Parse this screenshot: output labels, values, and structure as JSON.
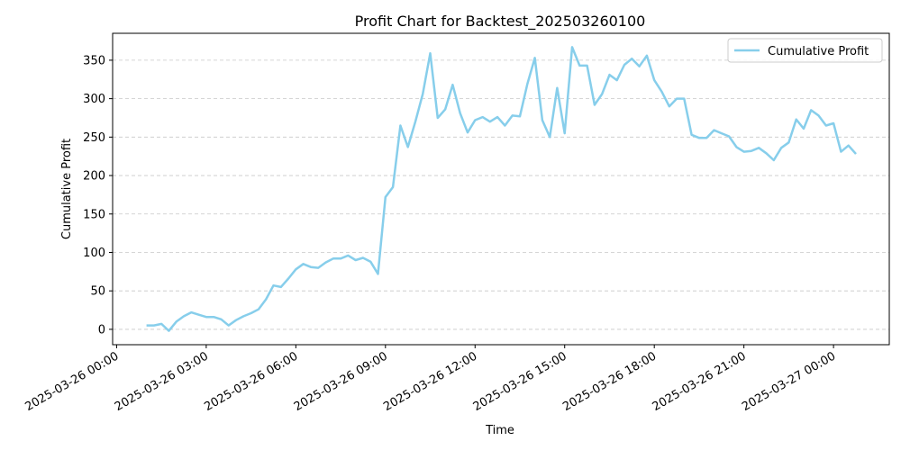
{
  "chart_data": {
    "type": "line",
    "title": "Profit Chart for Backtest_202503260100",
    "xlabel": "Time",
    "ylabel": "Cumulative Profit",
    "xlim": [
      "2025-03-25 23:52",
      "2025-03-27 01:52"
    ],
    "ylim": [
      -20,
      385
    ],
    "x_ticks": [
      "2025-03-26 00:00",
      "2025-03-26 03:00",
      "2025-03-26 06:00",
      "2025-03-26 09:00",
      "2025-03-26 12:00",
      "2025-03-26 15:00",
      "2025-03-26 18:00",
      "2025-03-26 21:00",
      "2025-03-27 00:00"
    ],
    "y_ticks": [
      0,
      50,
      100,
      150,
      200,
      250,
      300,
      350
    ],
    "grid": "horizontal dashed",
    "legend_position": "top-right",
    "series": [
      {
        "name": "Cumulative Profit",
        "color": "#87ceeb",
        "x": [
          "2025-03-26 01:00",
          "2025-03-26 01:15",
          "2025-03-26 01:30",
          "2025-03-26 01:45",
          "2025-03-26 02:00",
          "2025-03-26 02:15",
          "2025-03-26 02:30",
          "2025-03-26 02:45",
          "2025-03-26 03:00",
          "2025-03-26 03:15",
          "2025-03-26 03:30",
          "2025-03-26 03:45",
          "2025-03-26 04:00",
          "2025-03-26 04:15",
          "2025-03-26 04:30",
          "2025-03-26 04:45",
          "2025-03-26 05:00",
          "2025-03-26 05:15",
          "2025-03-26 05:30",
          "2025-03-26 05:45",
          "2025-03-26 06:00",
          "2025-03-26 06:15",
          "2025-03-26 06:30",
          "2025-03-26 06:45",
          "2025-03-26 07:00",
          "2025-03-26 07:15",
          "2025-03-26 07:30",
          "2025-03-26 07:45",
          "2025-03-26 08:00",
          "2025-03-26 08:15",
          "2025-03-26 08:30",
          "2025-03-26 08:45",
          "2025-03-26 09:00",
          "2025-03-26 09:15",
          "2025-03-26 09:30",
          "2025-03-26 09:45",
          "2025-03-26 10:00",
          "2025-03-26 10:15",
          "2025-03-26 10:30",
          "2025-03-26 10:45",
          "2025-03-26 11:00",
          "2025-03-26 11:15",
          "2025-03-26 11:30",
          "2025-03-26 11:45",
          "2025-03-26 12:00",
          "2025-03-26 12:15",
          "2025-03-26 12:30",
          "2025-03-26 12:45",
          "2025-03-26 13:00",
          "2025-03-26 13:15",
          "2025-03-26 13:30",
          "2025-03-26 13:45",
          "2025-03-26 14:00",
          "2025-03-26 14:15",
          "2025-03-26 14:30",
          "2025-03-26 14:45",
          "2025-03-26 15:00",
          "2025-03-26 15:15",
          "2025-03-26 15:30",
          "2025-03-26 15:45",
          "2025-03-26 16:00",
          "2025-03-26 16:15",
          "2025-03-26 16:30",
          "2025-03-26 16:45",
          "2025-03-26 17:00",
          "2025-03-26 17:15",
          "2025-03-26 17:30",
          "2025-03-26 17:45",
          "2025-03-26 18:00",
          "2025-03-26 18:15",
          "2025-03-26 18:30",
          "2025-03-26 18:45",
          "2025-03-26 19:00",
          "2025-03-26 19:15",
          "2025-03-26 19:30",
          "2025-03-26 19:45",
          "2025-03-26 20:00",
          "2025-03-26 20:15",
          "2025-03-26 20:30",
          "2025-03-26 20:45",
          "2025-03-26 21:00",
          "2025-03-26 21:15",
          "2025-03-26 21:30",
          "2025-03-26 21:45",
          "2025-03-26 22:00",
          "2025-03-26 22:15",
          "2025-03-26 22:30",
          "2025-03-26 22:45",
          "2025-03-26 23:00",
          "2025-03-26 23:15",
          "2025-03-26 23:30",
          "2025-03-26 23:45",
          "2025-03-27 00:00",
          "2025-03-27 00:15",
          "2025-03-27 00:30",
          "2025-03-27 00:45"
        ],
        "values": [
          5,
          5,
          7,
          -2,
          10,
          17,
          22,
          19,
          16,
          16,
          13,
          5,
          12,
          17,
          21,
          26,
          39,
          57,
          55,
          66,
          78,
          85,
          81,
          80,
          87,
          92,
          92,
          96,
          90,
          93,
          88,
          72,
          172,
          185,
          265,
          237,
          270,
          306,
          359,
          275,
          286,
          318,
          281,
          256,
          272,
          276,
          270,
          276,
          265,
          278,
          277,
          319,
          353,
          272,
          250,
          314,
          255,
          367,
          343,
          343,
          292,
          306,
          331,
          324,
          344,
          352,
          342,
          356,
          324,
          309,
          290,
          300,
          300,
          253,
          249,
          249,
          259,
          255,
          251,
          237,
          231,
          232,
          236,
          229,
          220,
          236,
          243,
          273,
          261,
          285,
          278,
          265,
          268,
          231,
          239,
          228
        ]
      }
    ]
  }
}
